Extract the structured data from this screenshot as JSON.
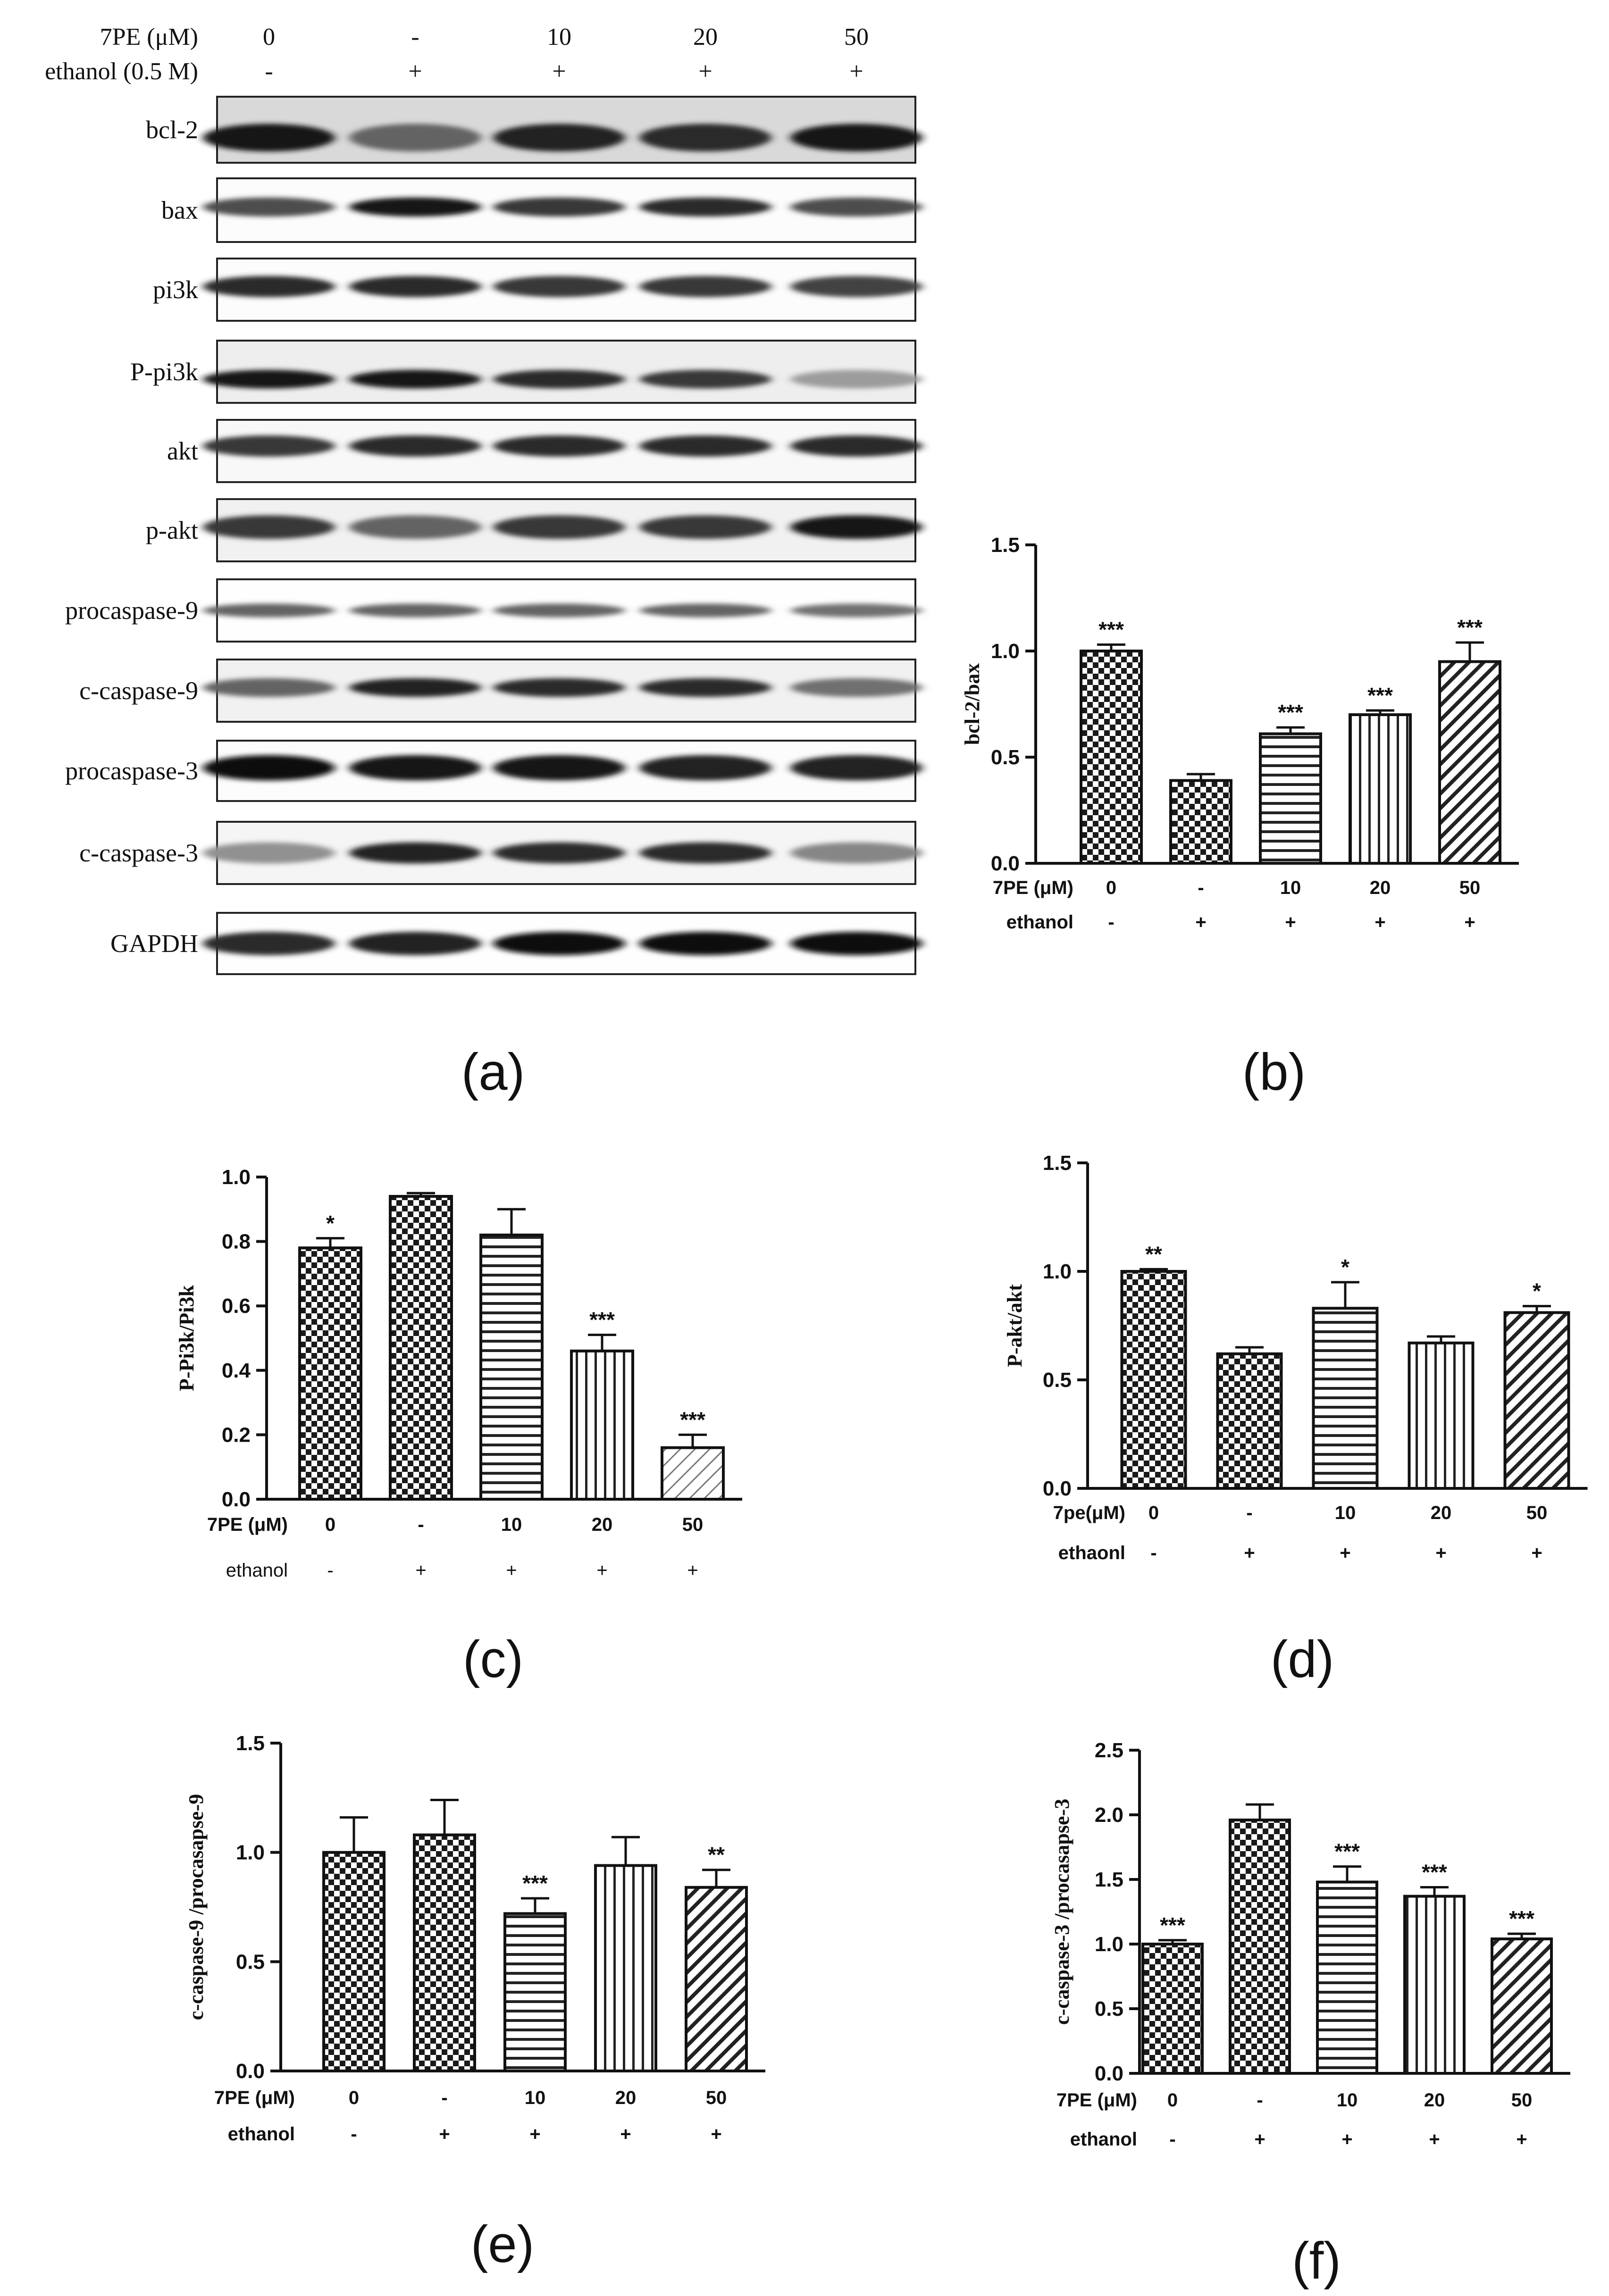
{
  "blot": {
    "header_rows": [
      {
        "label": "7PE (μM)",
        "values": [
          "0",
          "-",
          "10",
          "20",
          "50"
        ]
      },
      {
        "label": "ethanol (0.5 M)",
        "values": [
          "-",
          "+",
          "+",
          "+",
          "+"
        ]
      }
    ],
    "bands": [
      "bcl-2",
      "bax",
      "pi3k",
      "P-pi3k",
      "akt",
      "p-akt",
      "procaspase-9",
      "c-caspase-9",
      "procaspase-3",
      "c-caspase-3",
      "GAPDH"
    ],
    "caption": "(a)"
  },
  "chart_data": [
    {
      "id": "b",
      "type": "bar",
      "caption": "(b)",
      "ylabel": "bcl-2/bax",
      "ylim": [
        0,
        1.5
      ],
      "yticks": [
        "0.0",
        "0.5",
        "1.0",
        "1.5"
      ],
      "row_labels": [
        "7PE (μM)",
        "ethanol"
      ],
      "categories": [
        "0",
        "-",
        "10",
        "20",
        "50"
      ],
      "ethanol": [
        "-",
        "+",
        "+",
        "+",
        "+"
      ],
      "values": [
        1.0,
        0.39,
        0.61,
        0.7,
        0.95
      ],
      "errors": [
        0.03,
        0.03,
        0.03,
        0.02,
        0.09
      ],
      "significance": [
        "***",
        "",
        "***",
        "***",
        "***"
      ]
    },
    {
      "id": "c",
      "type": "bar",
      "caption": "(c)",
      "ylabel": "P-Pi3k/Pi3k",
      "ylim": [
        0,
        1.0
      ],
      "yticks": [
        "0.0",
        "0.2",
        "0.4",
        "0.6",
        "0.8",
        "1.0"
      ],
      "row_labels": [
        "7PE (μM)",
        "ethanol"
      ],
      "categories": [
        "0",
        "-",
        "10",
        "20",
        "50"
      ],
      "ethanol": [
        "-",
        "+",
        "+",
        "+",
        "+"
      ],
      "values": [
        0.78,
        0.94,
        0.82,
        0.46,
        0.16
      ],
      "errors": [
        0.03,
        0.01,
        0.08,
        0.05,
        0.04
      ],
      "significance": [
        "*",
        "",
        "",
        "***",
        "***"
      ]
    },
    {
      "id": "d",
      "type": "bar",
      "caption": "(d)",
      "ylabel": "P-akt/akt",
      "ylim": [
        0,
        1.5
      ],
      "yticks": [
        "0.0",
        "0.5",
        "1.0",
        "1.5"
      ],
      "row_labels": [
        "7pe(μM)",
        "ethaonl"
      ],
      "categories": [
        "0",
        "-",
        "10",
        "20",
        "50"
      ],
      "ethanol": [
        "-",
        "+",
        "+",
        "+",
        "+"
      ],
      "values": [
        1.0,
        0.62,
        0.83,
        0.67,
        0.81
      ],
      "errors": [
        0.01,
        0.03,
        0.12,
        0.03,
        0.03
      ],
      "significance": [
        "**",
        "",
        "*",
        "",
        "*"
      ]
    },
    {
      "id": "e",
      "type": "bar",
      "caption": "(e)",
      "ylabel": "c-caspase-9 /procasapse-9",
      "ylim": [
        0,
        1.5
      ],
      "yticks": [
        "0.0",
        "0.5",
        "1.0",
        "1.5"
      ],
      "row_labels": [
        "7PE (μM)",
        "ethanol"
      ],
      "categories": [
        "0",
        "-",
        "10",
        "20",
        "50"
      ],
      "ethanol": [
        "-",
        "+",
        "+",
        "+",
        "+"
      ],
      "values": [
        1.0,
        1.08,
        0.72,
        0.94,
        0.84
      ],
      "errors": [
        0.16,
        0.16,
        0.07,
        0.13,
        0.08
      ],
      "significance": [
        "",
        "",
        "***",
        "",
        "**"
      ]
    },
    {
      "id": "f",
      "type": "bar",
      "caption": "(f)",
      "ylabel": "c-caspase-3 /procasapse-3",
      "ylim": [
        0,
        2.5
      ],
      "yticks": [
        "0.0",
        "0.5",
        "1.0",
        "1.5",
        "2.0",
        "2.5"
      ],
      "row_labels": [
        "7PE (μM)",
        "ethanol"
      ],
      "categories": [
        "0",
        "-",
        "10",
        "20",
        "50"
      ],
      "ethanol": [
        "-",
        "+",
        "+",
        "+",
        "+"
      ],
      "values": [
        1.0,
        1.96,
        1.48,
        1.37,
        1.04
      ],
      "errors": [
        0.03,
        0.12,
        0.12,
        0.07,
        0.04
      ],
      "significance": [
        "***",
        "",
        "***",
        "***",
        "***"
      ]
    }
  ]
}
